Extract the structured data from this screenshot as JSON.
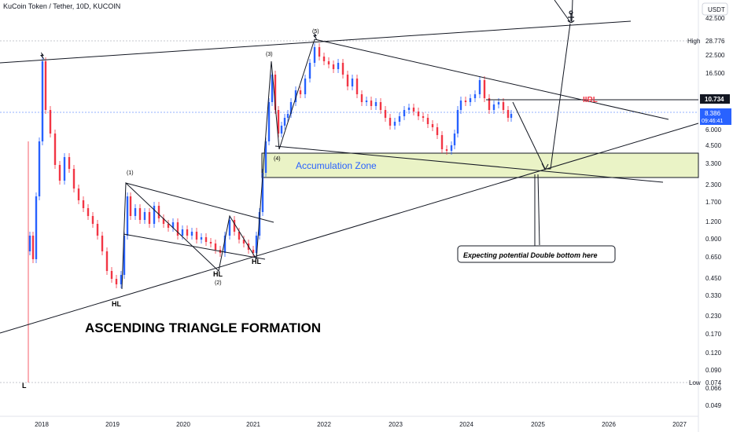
{
  "header": {
    "title": "KuCoin Token / Tether, 10D, KUCOIN"
  },
  "currency_badge": "USDT",
  "colors": {
    "up": "#2962ff",
    "down": "#f23645",
    "zone_fill": "#eaf3c6",
    "zone_text": "#2962ff",
    "irl": "#f23645",
    "line": "#131722"
  },
  "chart_data": {
    "type": "candlestick",
    "x_axis_labels": [
      "2018",
      "2019",
      "2020",
      "2021",
      "2022",
      "2023",
      "2024",
      "2025",
      "2026",
      "2027"
    ],
    "y_axis_labels": [
      "42.500",
      "28.776",
      "22.500",
      "16.500",
      "10.734",
      "8.386",
      "6.000",
      "4.500",
      "3.300",
      "2.300",
      "1.700",
      "1.200",
      "0.900",
      "0.650",
      "0.450",
      "0.330",
      "0.230",
      "0.170",
      "0.120",
      "0.090",
      "0.074",
      "0.066",
      "0.049"
    ],
    "scale": "log",
    "high": {
      "label": "High",
      "value": "28.776"
    },
    "low": {
      "label": "Low",
      "value": "0.074"
    },
    "last_price": {
      "value": "8.386",
      "countdown": "09:46:41"
    },
    "level_marker": "10.734",
    "irl_label": "IIRL",
    "annotations": {
      "pattern_title": "ASCENDING TRIANGLE FORMATION",
      "zone_label": "Accumulation Zone",
      "callout": "Expecting potential Double bottom here",
      "wave_1": "(1)",
      "wave_2": "(2)",
      "wave_3": "(3)",
      "wave_4": "(4)",
      "wave_5": "(5)",
      "hl": "HL",
      "low_marker": "L"
    },
    "ohlc": []
  }
}
